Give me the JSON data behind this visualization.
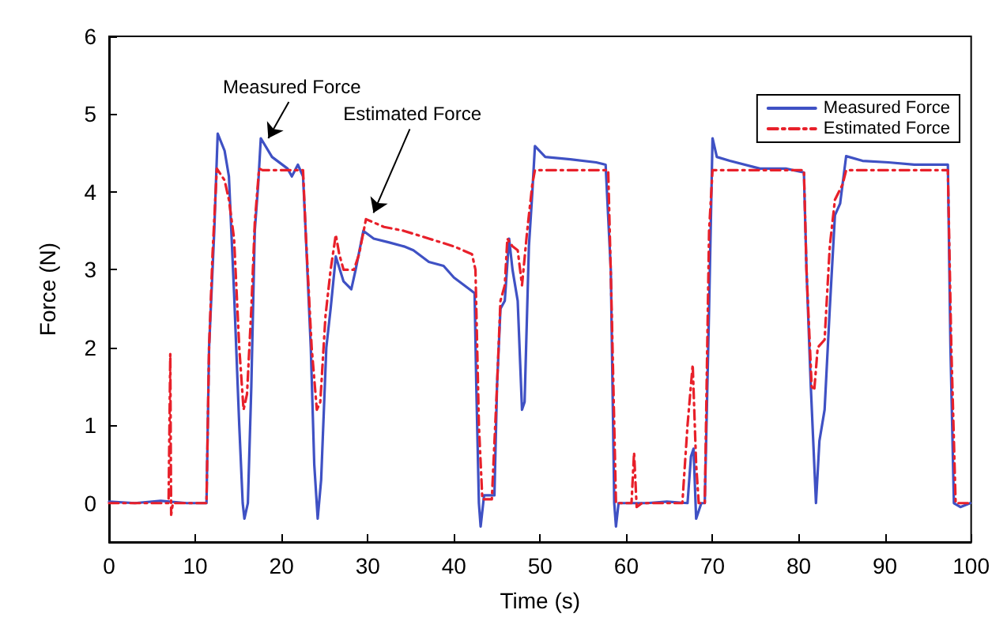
{
  "chart_data": {
    "type": "line",
    "xlabel": "Time (s)",
    "ylabel": "Force (N)",
    "xlim": [
      0,
      100
    ],
    "xticks": [
      0,
      10,
      20,
      30,
      40,
      50,
      60,
      70,
      80,
      90,
      100
    ],
    "ylim": [
      -0.5,
      6
    ],
    "yticks": [
      0,
      1,
      2,
      3,
      4,
      5,
      6
    ],
    "grid": false,
    "legend": "top right",
    "marker": "none",
    "annotations": [
      {
        "text": "Measured Force",
        "x": 18.1,
        "y": 4.65
      },
      {
        "text": "Estimated Force",
        "x": 30.3,
        "y": 3.69
      }
    ],
    "series": [
      {
        "name": "Measured Force",
        "color": "#3f51c4",
        "line_style": "solid",
        "x": [
          0,
          3,
          6,
          9,
          11.3,
          11.6,
          12.2,
          12.6,
          13.4,
          13.9,
          14.5,
          15.1,
          15.5,
          15.7,
          16.1,
          16.5,
          16.9,
          17.3,
          17.6,
          18.9,
          20.7,
          21.2,
          21.9,
          22.5,
          22.8,
          23.4,
          23.8,
          24.2,
          24.6,
          25.2,
          25.7,
          26.3,
          27.2,
          28.1,
          28.6,
          29.5,
          30.7,
          32.5,
          34.2,
          35.3,
          37.1,
          38.8,
          40,
          41.8,
          42.4,
          42.6,
          42.9,
          43.1,
          43.5,
          44.7,
          45,
          45.4,
          45.9,
          46.4,
          46.8,
          47.4,
          47.9,
          48.2,
          48.7,
          49.1,
          49.4,
          50.6,
          53.5,
          56.5,
          57.6,
          58.2,
          58.6,
          58.8,
          59.1,
          62.4,
          64.7,
          67.1,
          67.5,
          67.8,
          68.1,
          68.7,
          69.1,
          69.6,
          70,
          70.5,
          72,
          75.5,
          78.5,
          80.6,
          80.9,
          81.4,
          82,
          82.4,
          83,
          83.6,
          84.2,
          84.8,
          85.5,
          87.4,
          90.4,
          93.4,
          97.3,
          97.6,
          98,
          98.75,
          99.9
        ],
        "values": [
          0.02,
          0,
          0.03,
          0,
          0,
          2,
          3.5,
          4.75,
          4.53,
          4.2,
          2.7,
          1,
          0,
          -0.2,
          0,
          1.5,
          3.5,
          4.1,
          4.69,
          4.45,
          4.3,
          4.2,
          4.35,
          4.2,
          3.5,
          2,
          0.5,
          -0.2,
          0.3,
          2,
          2.5,
          3.17,
          2.85,
          2.75,
          3,
          3.5,
          3.4,
          3.35,
          3.3,
          3.25,
          3.1,
          3.05,
          2.9,
          2.75,
          2.7,
          1.5,
          0,
          -0.3,
          0.1,
          0.1,
          1.5,
          2.5,
          2.6,
          3.4,
          3,
          2.6,
          1.2,
          1.3,
          3.3,
          4,
          4.59,
          4.45,
          4.42,
          4.38,
          4.35,
          3,
          0,
          -0.3,
          0,
          0,
          0.02,
          0,
          0.6,
          0.7,
          -0.2,
          0,
          0,
          2.5,
          4.69,
          4.45,
          4.4,
          4.3,
          4.3,
          4.25,
          3,
          1.5,
          0,
          0.8,
          1.2,
          2.5,
          3.7,
          3.85,
          4.46,
          4.4,
          4.38,
          4.35,
          4.35,
          2,
          0,
          -0.05,
          0
        ]
      },
      {
        "name": "Estimated Force",
        "color": "#e8202a",
        "line_style": "dashed",
        "x": [
          0,
          3,
          6.9,
          7.1,
          7.2,
          7.4,
          9,
          11.3,
          11.6,
          12,
          12.5,
          13.4,
          13.9,
          14.5,
          15.1,
          15.6,
          16,
          16.5,
          16.9,
          17.4,
          17.8,
          22.5,
          22.8,
          23.5,
          24.1,
          24.5,
          25.1,
          25.7,
          26.3,
          26.7,
          27.2,
          28.4,
          29,
          29.8,
          31.9,
          34.2,
          37.1,
          40,
          42.1,
          42.5,
          42.9,
          43.3,
          44.4,
          45,
          45.4,
          45.9,
          46.2,
          46.8,
          47.4,
          47.9,
          48.5,
          49.1,
          49.4,
          57.9,
          58.3,
          58.8,
          60.6,
          60.9,
          61.2,
          61.8,
          66.5,
          67.1,
          67.7,
          68.1,
          68.4,
          69.1,
          69.6,
          70,
          80.6,
          80.9,
          81.5,
          81.8,
          82.2,
          83,
          83.6,
          84.2,
          85.1,
          85.5,
          97.3,
          97.7,
          98.2,
          99.9
        ],
        "values": [
          0,
          0,
          0,
          1.92,
          -0.15,
          0,
          0,
          0,
          2,
          3.2,
          4.3,
          4.15,
          3.9,
          3.4,
          2,
          1.2,
          1.4,
          2.5,
          3.6,
          4.3,
          4.28,
          4.28,
          3.5,
          2,
          1.2,
          1.3,
          2.4,
          3,
          3.45,
          3.2,
          3,
          3,
          3.2,
          3.65,
          3.55,
          3.5,
          3.4,
          3.3,
          3.2,
          3,
          1,
          0.05,
          0.05,
          1.5,
          2.6,
          2.8,
          3.4,
          3.3,
          3.25,
          2.8,
          3.5,
          4.1,
          4.28,
          4.28,
          2.5,
          0,
          0,
          0.65,
          -0.05,
          0,
          0,
          1,
          1.78,
          0.5,
          0,
          0,
          3.5,
          4.28,
          4.28,
          3,
          1.5,
          1.45,
          2,
          2.1,
          3.3,
          3.9,
          4.1,
          4.28,
          4.28,
          2,
          0,
          0
        ]
      }
    ]
  }
}
